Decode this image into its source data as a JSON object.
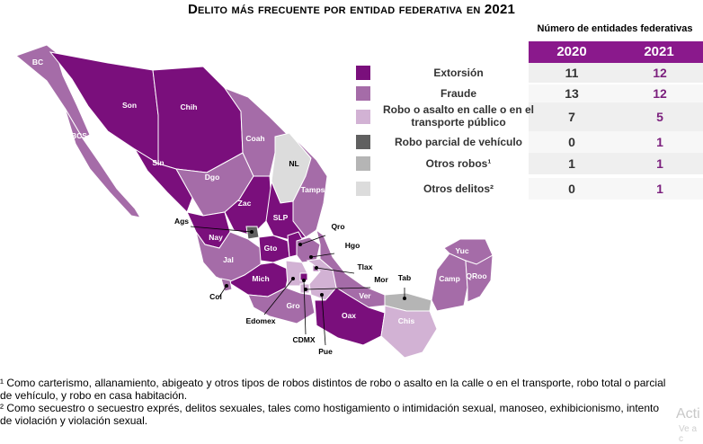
{
  "title": "Delito más frecuente por entidad federativa en 2021",
  "chart_data": {
    "type": "table",
    "table_header": "Número de entidades federativas",
    "columns": [
      "2020",
      "2021"
    ],
    "rows": [
      {
        "label": "Extorsión",
        "color": "#7a0f7c",
        "v2020": "11",
        "v2021": "12"
      },
      {
        "label": "Fraude",
        "color": "#a56ca8",
        "v2020": "13",
        "v2021": "12"
      },
      {
        "label": "Robo o asalto en calle o en el transporte público",
        "color": "#d2b2d4",
        "v2020": "7",
        "v2021": "5"
      },
      {
        "label": "Robo parcial de vehículo",
        "color": "#606060",
        "v2020": "0",
        "v2021": "1"
      },
      {
        "label": "Otros robos¹",
        "color": "#b5b5b5",
        "v2020": "1",
        "v2021": "1"
      },
      {
        "label": "Otros delitos²",
        "color": "#dcdcdc",
        "v2020": "0",
        "v2021": "1"
      }
    ],
    "state_labels": [
      "BC",
      "Son",
      "Chih",
      "BCS",
      "Coah",
      "Sin",
      "NL",
      "Dgo",
      "Tamps",
      "Zac",
      "SLP",
      "Ags",
      "Nay",
      "Gto",
      "Qro",
      "Hgo",
      "Jal",
      "Tlax",
      "Yuc",
      "QRoo",
      "Camp",
      "Mich",
      "Mor",
      "Tab",
      "Col",
      "Ver",
      "Edomex",
      "Gro",
      "Oax",
      "Chis",
      "CDMX",
      "Pue"
    ]
  },
  "footnotes": [
    "¹ Como carterismo, allanamiento, abigeato y otros tipos de robos distintos de robo o asalto en la calle o en el transporte, robo total o parcial",
    "de vehículo, y robo en casa habitación.",
    "² Como secuestro o secuestro exprés, delitos sexuales, tales como hostigamiento o intimidación sexual, manoseo, exhibicionismo, intento",
    "de violación y violación sexual."
  ],
  "watermark": [
    "Acti",
    "Ve a c"
  ]
}
